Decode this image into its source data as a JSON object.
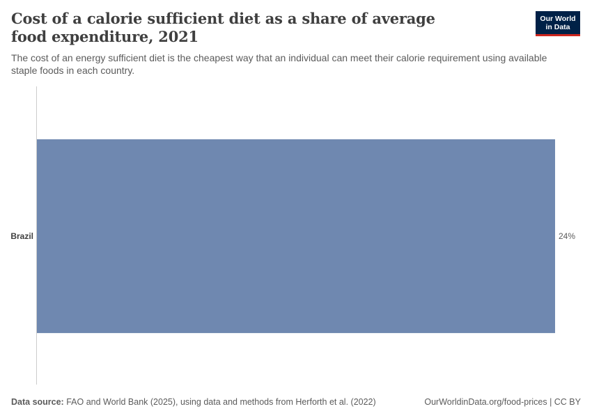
{
  "header": {
    "title": "Cost of a calorie sufficient diet as a share of average food expenditure, 2021",
    "subtitle": "The cost of an energy sufficient diet is the cheapest way that an individual can meet their calorie requirement using available staple foods in each country."
  },
  "logo": {
    "line1": "Our World",
    "line2": "in Data"
  },
  "footer": {
    "source_label": "Data source:",
    "source_text": "FAO and World Bank (2025), using data and methods from Herforth et al. (2022)",
    "url_license": "OurWorldinData.org/food-prices | CC BY"
  },
  "colors": {
    "bar": "#6f88b0",
    "axis": "#cccccc",
    "label": "#3f3f3f",
    "value": "#5b5b5b"
  },
  "chart_data": {
    "type": "bar",
    "orientation": "horizontal",
    "categories": [
      "Brazil"
    ],
    "values": [
      24
    ],
    "value_labels": [
      "24%"
    ],
    "unit": "%",
    "xlim": [
      0,
      24
    ],
    "grid": false
  }
}
